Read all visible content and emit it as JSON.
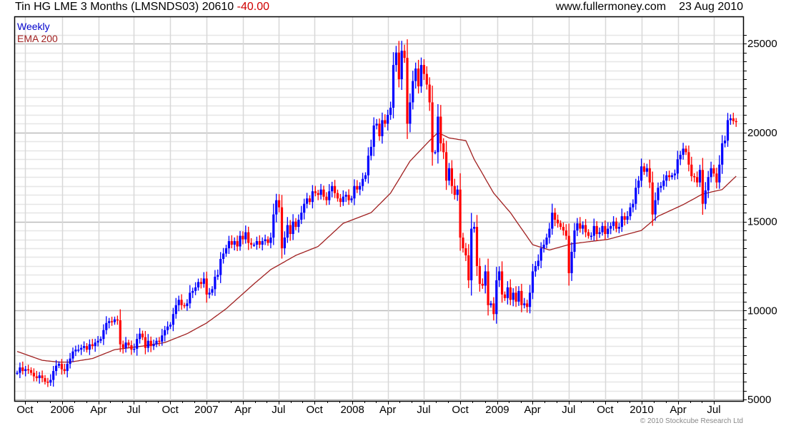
{
  "header": {
    "title": "Tin HG LME 3 Months (LMSNDS03) 20610",
    "change": "-40.00",
    "site": "www.fullermoney.com",
    "date": "23 Aug 2010"
  },
  "legend": {
    "period": "Weekly",
    "indicator": "EMA 200"
  },
  "copyright": "© 2010 Stockcube Research Ltd",
  "colors": {
    "up": "#0000ff",
    "down": "#ff0000",
    "ema": "#a02020",
    "grid_major": "#bbbbbb",
    "grid_minor": "#e6e6e6",
    "vgrid": "#d8d8d8"
  },
  "chart_data": {
    "type": "candlestick",
    "title": "Tin HG LME 3 Months (LMSNDS03)",
    "frequency": "weekly",
    "ylim": [
      5000,
      25800
    ],
    "y_ticks": [
      5000,
      10000,
      15000,
      20000,
      25000
    ],
    "y_tick_labels": [
      "5000",
      "10000",
      "15000",
      "20000",
      "25000"
    ],
    "y_minor_step": 500,
    "x_ticks": [
      {
        "week": 2.8,
        "label": "Oct"
      },
      {
        "week": 16.2,
        "label": "2006"
      },
      {
        "week": 29.2,
        "label": "Apr"
      },
      {
        "week": 41.8,
        "label": "Jul"
      },
      {
        "week": 54.9,
        "label": "Oct"
      },
      {
        "week": 67.9,
        "label": "2007"
      },
      {
        "week": 81,
        "label": "Apr"
      },
      {
        "week": 93.8,
        "label": "Jul"
      },
      {
        "week": 106.7,
        "label": "Oct"
      },
      {
        "week": 120.3,
        "label": "2008"
      },
      {
        "week": 133,
        "label": "Apr"
      },
      {
        "week": 145.9,
        "label": "Jul"
      },
      {
        "week": 159,
        "label": "Oct"
      },
      {
        "week": 172.3,
        "label": "2009"
      },
      {
        "week": 184.9,
        "label": "Apr"
      },
      {
        "week": 197.9,
        "label": "Jul"
      },
      {
        "week": 211,
        "label": "Oct"
      },
      {
        "week": 224.1,
        "label": "2010"
      },
      {
        "week": 237.2,
        "label": "Apr"
      },
      {
        "week": 250,
        "label": "Jul"
      }
    ],
    "close": [
      6500,
      6800,
      6600,
      6700,
      6650,
      6500,
      6300,
      6200,
      6350,
      6200,
      6000,
      5950,
      6100,
      6600,
      6900,
      7000,
      6700,
      6600,
      7000,
      7300,
      7700,
      7800,
      7800,
      7900,
      8000,
      7800,
      8100,
      8000,
      8200,
      8300,
      8400,
      8900,
      9300,
      9400,
      9350,
      9500,
      9450,
      8100,
      7900,
      8200,
      8050,
      7800,
      7850,
      8400,
      8700,
      8500,
      7900,
      8300,
      8000,
      8100,
      8300,
      8250,
      8600,
      8900,
      9100,
      9200,
      9800,
      10300,
      10600,
      10300,
      10250,
      10400,
      11000,
      11100,
      11300,
      11600,
      11500,
      11800,
      10900,
      11000,
      11200,
      11900,
      12000,
      12900,
      13200,
      13500,
      13900,
      13700,
      13900,
      13600,
      14200,
      14000,
      14400,
      13800,
      13700,
      13700,
      13900,
      13700,
      13900,
      14000,
      13800,
      14100,
      15400,
      16200,
      15800,
      13500,
      14100,
      14800,
      14300,
      15000,
      14700,
      15100,
      15500,
      16000,
      16300,
      16100,
      16700,
      16600,
      16500,
      16800,
      16400,
      16200,
      16700,
      17000,
      16600,
      16300,
      16100,
      16400,
      16500,
      16200,
      16300,
      17000,
      16800,
      17000,
      17400,
      17600,
      18700,
      19200,
      20400,
      20500,
      19800,
      20700,
      20500,
      21000,
      21400,
      23800,
      24500,
      23000,
      24600,
      24200,
      20500,
      21700,
      22900,
      23600,
      22600,
      23800,
      23300,
      22700,
      21700,
      18900,
      18900,
      20900,
      19400,
      18900,
      17300,
      18000,
      17000,
      16500,
      16800,
      14100,
      13500,
      13100,
      11700,
      14600,
      14700,
      12500,
      11500,
      11400,
      12200,
      10300,
      10400,
      9800,
      11700,
      12200,
      10900,
      10700,
      11300,
      10600,
      11000,
      10500,
      11100,
      10300,
      10400,
      10200,
      11000,
      12200,
      12500,
      12800,
      13500,
      13700,
      14100,
      14600,
      15500,
      15100,
      14900,
      14700,
      14500,
      14200,
      12100,
      13300,
      14500,
      14900,
      14600,
      14800,
      14400,
      14200,
      14200,
      14750,
      14300,
      14400,
      14750,
      14300,
      14600,
      14750,
      15000,
      14600,
      14700,
      15300,
      15100,
      15300,
      15800,
      16000,
      16900,
      17300,
      18100,
      17800,
      18000,
      17200,
      15400,
      16200,
      16900,
      17000,
      17300,
      17600,
      17500,
      17600,
      17700,
      18500,
      18750,
      19100,
      18900,
      18200,
      17550,
      17500,
      17200,
      17900,
      16000,
      16750,
      17500,
      18000,
      17700,
      17200,
      18200,
      19400,
      19550,
      20700,
      20800,
      20650,
      20610
    ],
    "ema200": [
      [
        0,
        7700
      ],
      [
        9,
        7200
      ],
      [
        15,
        7100
      ],
      [
        19,
        7100
      ],
      [
        27,
        7300
      ],
      [
        35,
        7800
      ],
      [
        45,
        8000
      ],
      [
        53,
        8200
      ],
      [
        61,
        8700
      ],
      [
        68,
        9300
      ],
      [
        75,
        10100
      ],
      [
        85,
        11500
      ],
      [
        91,
        12300
      ],
      [
        100,
        13100
      ],
      [
        108,
        13600
      ],
      [
        117,
        14900
      ],
      [
        127,
        15500
      ],
      [
        134,
        16600
      ],
      [
        141,
        18400
      ],
      [
        148,
        19550
      ],
      [
        151,
        20000
      ],
      [
        155,
        19700
      ],
      [
        161,
        19550
      ],
      [
        164,
        18500
      ],
      [
        171,
        16600
      ],
      [
        177,
        15500
      ],
      [
        185,
        13700
      ],
      [
        191,
        13400
      ],
      [
        199,
        13750
      ],
      [
        212,
        14000
      ],
      [
        224,
        14500
      ],
      [
        230,
        15300
      ],
      [
        239,
        15950
      ],
      [
        246,
        16550
      ],
      [
        253,
        16800
      ],
      [
        258,
        17550
      ]
    ]
  }
}
